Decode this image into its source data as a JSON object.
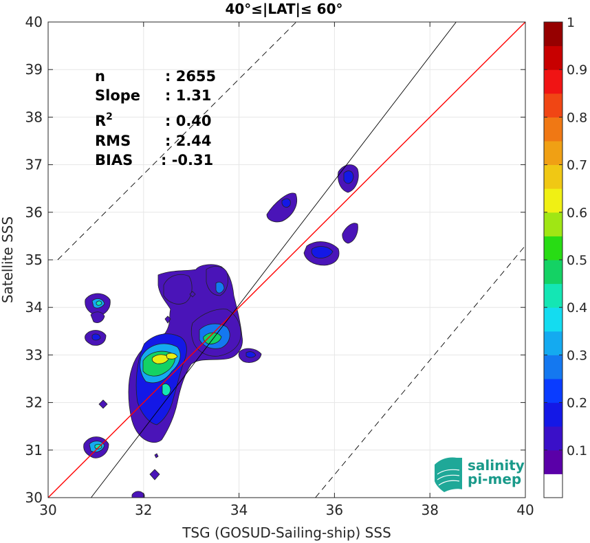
{
  "chart_data": {
    "type": "heatmap",
    "title": "40°≤|LAT|≤ 60°",
    "xlabel": "TSG (GOSUD-Sailing-ship) SSS",
    "ylabel": "Satellite SSS",
    "xlim": [
      30,
      40
    ],
    "ylim": [
      30,
      40
    ],
    "xticks": [
      "30",
      "32",
      "34",
      "36",
      "38",
      "40"
    ],
    "yticks": [
      "30",
      "31",
      "32",
      "33",
      "34",
      "35",
      "36",
      "37",
      "38",
      "39",
      "40"
    ],
    "grid": true,
    "stats": [
      {
        "label": "n",
        "value": ": 2655"
      },
      {
        "label": "Slope",
        "value": ": 1.31"
      },
      {
        "label": "R",
        "sup": "2",
        "value": ": 0.40"
      },
      {
        "label": "RMS",
        "value": ": 2.44"
      },
      {
        "label": "BIAS",
        "value": ": -0.31"
      }
    ],
    "lines": [
      {
        "name": "one-to-one",
        "color": "#ff0000",
        "style": "solid",
        "points": [
          [
            30,
            30
          ],
          [
            40,
            40
          ]
        ]
      },
      {
        "name": "regression",
        "color": "#000000",
        "style": "solid",
        "points": [
          [
            30.9,
            30
          ],
          [
            38.55,
            40
          ]
        ]
      },
      {
        "name": "upper-rms",
        "color": "#000000",
        "style": "dashed",
        "points": [
          [
            30.2,
            35
          ],
          [
            35.2,
            40
          ]
        ]
      },
      {
        "name": "lower-rms",
        "color": "#000000",
        "style": "dashed",
        "points": [
          [
            35.6,
            30
          ],
          [
            40,
            35.3
          ]
        ]
      }
    ],
    "colorbar": {
      "ticks": [
        "0.1",
        "0.2",
        "0.3",
        "0.4",
        "0.5",
        "0.6",
        "0.7",
        "0.8",
        "0.9",
        "1"
      ],
      "colors": [
        "#ffffff",
        "#5a00a8",
        "#3a10c8",
        "#1418e6",
        "#0a3cff",
        "#1478f0",
        "#14aaf0",
        "#14dcf0",
        "#14e6b4",
        "#14d264",
        "#28dc14",
        "#a0e614",
        "#f0f014",
        "#f0c814",
        "#f0a014",
        "#f07814",
        "#f04614",
        "#f01414",
        "#c80000",
        "#960000"
      ]
    },
    "density_peaks": [
      {
        "x": 32.3,
        "y": 32.9,
        "level": 0.65
      },
      {
        "x": 33.45,
        "y": 33.3,
        "level": 0.45
      },
      {
        "x": 31.1,
        "y": 31.05,
        "level": 0.45
      },
      {
        "x": 31.1,
        "y": 34.05,
        "level": 0.4
      },
      {
        "x": 32.5,
        "y": 32.3,
        "level": 0.45
      },
      {
        "x": 35.8,
        "y": 35.15,
        "level": 0.25
      },
      {
        "x": 36.35,
        "y": 36.7,
        "level": 0.25
      },
      {
        "x": 35.05,
        "y": 36.2,
        "level": 0.25
      },
      {
        "x": 33.6,
        "y": 34.3,
        "level": 0.3
      },
      {
        "x": 34.3,
        "y": 32.95,
        "level": 0.25
      }
    ]
  },
  "logo": {
    "line1": "salinity",
    "line2": "pi-mep"
  }
}
